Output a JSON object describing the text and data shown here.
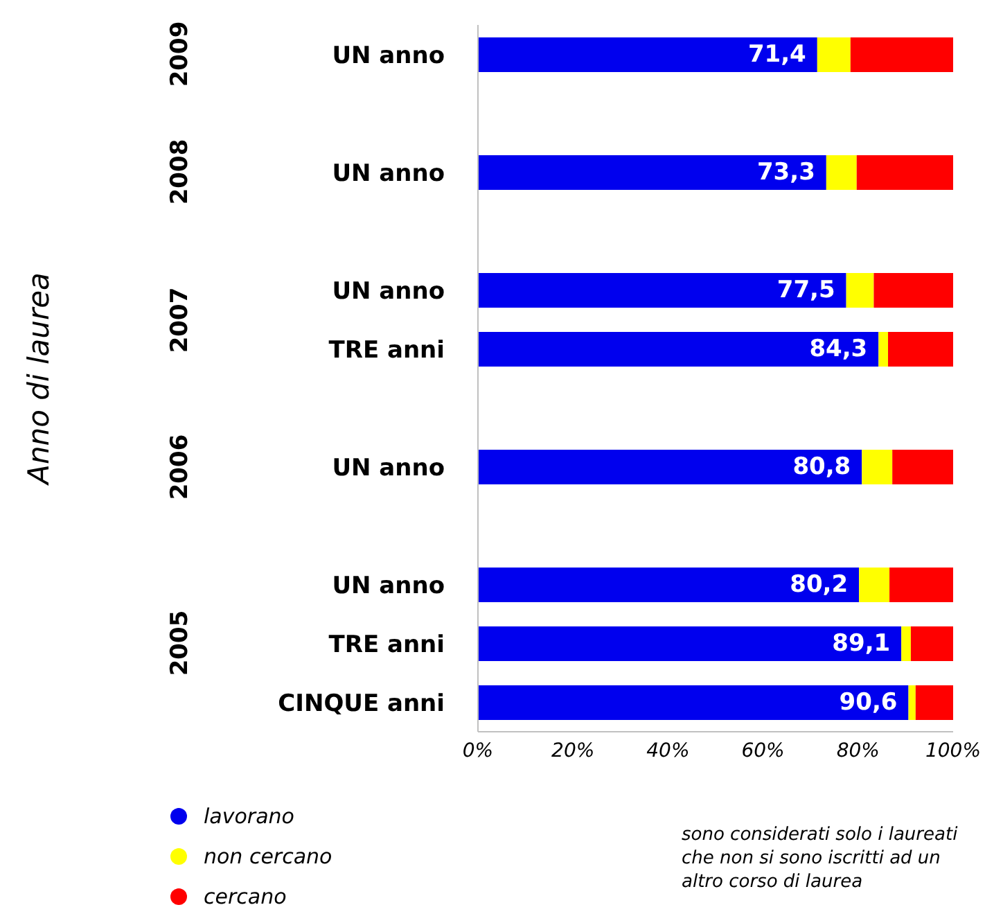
{
  "chart_data": {
    "type": "bar",
    "orientation": "horizontal",
    "stacked": true,
    "categories": [
      "UN anno",
      null,
      "UN anno",
      null,
      "UN anno",
      "TRE anni",
      null,
      "UN anno",
      null,
      "UN anno",
      "TRE anni",
      "CINQUE anni"
    ],
    "series": [
      {
        "name": "lavorano",
        "color": "#0000ee",
        "values": [
          71.4,
          null,
          73.3,
          null,
          77.5,
          84.3,
          null,
          80.8,
          null,
          80.2,
          89.1,
          90.6
        ],
        "value_labels": [
          "71,4",
          null,
          "73,3",
          null,
          "77,5",
          "84,3",
          null,
          "80,8",
          null,
          "80,2",
          "89,1",
          "90,6"
        ]
      },
      {
        "name": "non cercano",
        "color": "#ffff00",
        "values": [
          7.0,
          null,
          6.4,
          null,
          5.8,
          2.0,
          null,
          6.4,
          null,
          6.4,
          2.0,
          1.5
        ]
      },
      {
        "name": "cercano",
        "color": "#ff0000",
        "values": [
          21.6,
          null,
          20.3,
          null,
          16.7,
          13.7,
          null,
          12.8,
          null,
          13.4,
          8.9,
          7.9
        ]
      }
    ],
    "xlim": [
      0,
      100
    ],
    "xticks": [
      {
        "value": 0,
        "label": "0%"
      },
      {
        "value": 20,
        "label": "20%"
      },
      {
        "value": 40,
        "label": "40%"
      },
      {
        "value": 60,
        "label": "60%"
      },
      {
        "value": 80,
        "label": "80%"
      },
      {
        "value": 100,
        "label": "100%"
      }
    ],
    "legend": "bottom left",
    "annotations": [
      "Anno di laurea",
      "2009",
      "2008",
      "2007",
      "2006",
      "2005",
      "sono considerati solo i laureati che non si sono iscritti ad un altro corso di laurea"
    ]
  }
}
